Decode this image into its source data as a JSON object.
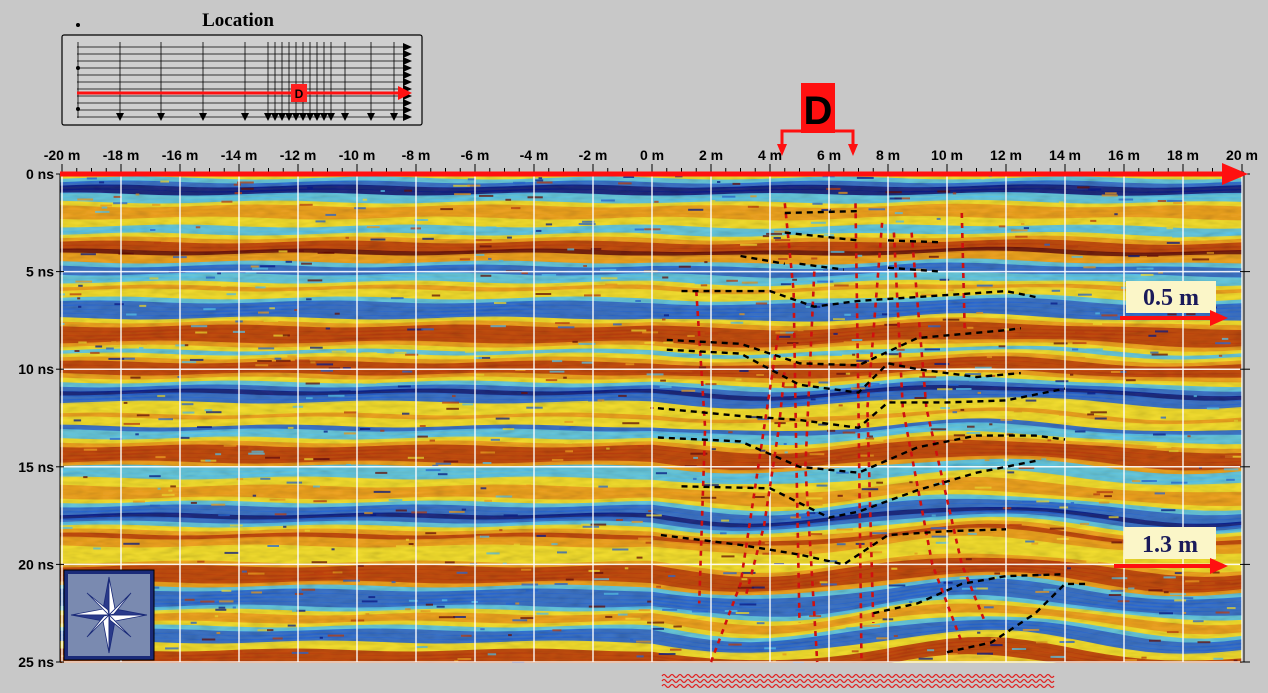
{
  "chart_data": {
    "type": "heatmap",
    "title": "",
    "x_ticks": [
      "-20 m",
      "-18 m",
      "-16 m",
      "-14 m",
      "-12 m",
      "-10 m",
      "-8 m",
      "-6 m",
      "-4 m",
      "-2 m",
      "0 m",
      "2 m",
      "4 m",
      "6 m",
      "8 m",
      "10 m",
      "12 m",
      "14 m",
      "16 m",
      "18 m",
      "20 m"
    ],
    "x_values": [
      -20,
      -18,
      -16,
      -14,
      -12,
      -10,
      -8,
      -6,
      -4,
      -2,
      0,
      2,
      4,
      6,
      8,
      10,
      12,
      14,
      16,
      18,
      20
    ],
    "y_ticks": [
      "0 ns",
      "5 ns",
      "10 ns",
      "15 ns",
      "20 ns",
      "25 ns"
    ],
    "y_values": [
      0,
      5,
      10,
      15,
      20,
      25
    ],
    "xlim": [
      -20,
      20
    ],
    "ylim": [
      0,
      25
    ],
    "grid": true,
    "colormap": [
      "#0a1c8c",
      "#2a6ad8",
      "#5ac8f0",
      "#f5e030",
      "#f0a020",
      "#c04010",
      "#6a1008"
    ],
    "annotations": {
      "location_title": "Location",
      "marker_label": "D",
      "mini_marker_label": "D",
      "depth_labels": [
        {
          "text": "0.5 m",
          "time_ns": 7.5
        },
        {
          "text": "1.3 m",
          "time_ns": 20
        }
      ]
    },
    "interpreted_reflectors_dashed_black": [
      [
        [
          1,
          6
        ],
        [
          4,
          6
        ],
        [
          5.5,
          6.8
        ],
        [
          7,
          6.5
        ],
        [
          9,
          6.3
        ],
        [
          12,
          6
        ],
        [
          13,
          6.3
        ]
      ],
      [
        [
          0.5,
          8.5
        ],
        [
          3,
          8.7
        ],
        [
          5,
          9.7
        ],
        [
          7,
          9.8
        ],
        [
          9,
          8.4
        ],
        [
          12,
          8
        ],
        [
          12.5,
          7.9
        ]
      ],
      [
        [
          0.5,
          9
        ],
        [
          3,
          9.2
        ],
        [
          5,
          10.8
        ],
        [
          7,
          11.2
        ],
        [
          8,
          9.7
        ],
        [
          9,
          10
        ],
        [
          11,
          10.4
        ],
        [
          12.5,
          10.2
        ]
      ],
      [
        [
          0.2,
          12
        ],
        [
          3,
          12.4
        ],
        [
          5,
          12.6
        ],
        [
          7,
          13
        ],
        [
          8,
          11.7
        ],
        [
          10,
          11.7
        ],
        [
          12,
          11.6
        ],
        [
          14,
          11
        ]
      ],
      [
        [
          0.2,
          13.5
        ],
        [
          3,
          13.7
        ],
        [
          5,
          15
        ],
        [
          7,
          15.3
        ],
        [
          9,
          14
        ],
        [
          11,
          13.4
        ],
        [
          13,
          13.4
        ],
        [
          14,
          13.6
        ]
      ],
      [
        [
          1,
          16
        ],
        [
          4,
          16.1
        ],
        [
          6,
          17.6
        ],
        [
          7,
          17.3
        ],
        [
          9,
          16.2
        ],
        [
          11,
          15.3
        ],
        [
          13,
          14.7
        ]
      ],
      [
        [
          0.3,
          18.5
        ],
        [
          3,
          19
        ],
        [
          5,
          19.5
        ],
        [
          6.5,
          20
        ],
        [
          8,
          18.5
        ],
        [
          10,
          18.3
        ],
        [
          12,
          18.2
        ]
      ],
      [
        [
          3,
          4.2
        ],
        [
          4.5,
          4.6
        ]
      ],
      [
        [
          4.5,
          2
        ],
        [
          7,
          1.9
        ]
      ],
      [
        [
          4.5,
          3
        ],
        [
          7,
          3.4
        ]
      ],
      [
        [
          5,
          4.6
        ],
        [
          6.5,
          4.9
        ]
      ],
      [
        [
          8,
          3.4
        ],
        [
          9.8,
          3.5
        ]
      ],
      [
        [
          8,
          4.8
        ],
        [
          9.8,
          5
        ]
      ],
      [
        [
          7.5,
          22.5
        ],
        [
          9,
          22
        ],
        [
          10.5,
          21
        ],
        [
          12,
          20.6
        ],
        [
          14,
          20.5
        ]
      ],
      [
        [
          10,
          24.5
        ],
        [
          11.5,
          24
        ],
        [
          13,
          22.5
        ],
        [
          14,
          21
        ],
        [
          14.8,
          21
        ]
      ]
    ],
    "interpreted_faults_dashed_red": [
      [
        [
          2,
          25
        ],
        [
          3,
          21
        ],
        [
          3.5,
          16
        ],
        [
          4,
          11
        ],
        [
          4.3,
          8
        ]
      ],
      [
        [
          3.2,
          21.5
        ],
        [
          3.8,
          18
        ],
        [
          4.3,
          13
        ],
        [
          4.5,
          10
        ]
      ],
      [
        [
          4.5,
          1.5
        ],
        [
          4.8,
          6
        ],
        [
          4.9,
          15
        ],
        [
          5,
          23
        ]
      ],
      [
        [
          5.5,
          5
        ],
        [
          5.2,
          15
        ],
        [
          5.6,
          25
        ]
      ],
      [
        [
          6.9,
          1.5
        ],
        [
          7,
          12
        ],
        [
          7.1,
          25
        ]
      ],
      [
        [
          7.8,
          2.5
        ],
        [
          7.3,
          12
        ],
        [
          7.5,
          23
        ]
      ],
      [
        [
          8.2,
          3
        ],
        [
          8.5,
          12
        ],
        [
          9.5,
          20
        ],
        [
          10.5,
          24
        ]
      ],
      [
        [
          8.8,
          3
        ],
        [
          9.3,
          12
        ],
        [
          10.5,
          20
        ],
        [
          11.3,
          23
        ]
      ],
      [
        [
          10.5,
          2
        ],
        [
          10.6,
          8
        ]
      ],
      [
        [
          1.5,
          6
        ],
        [
          1.8,
          13
        ],
        [
          1.6,
          22
        ]
      ]
    ]
  }
}
